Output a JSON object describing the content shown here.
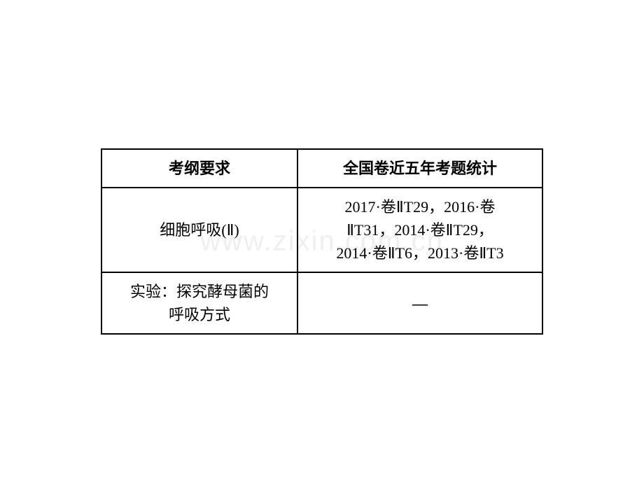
{
  "watermark": {
    "text": "www.zixin.com.cn",
    "color": "#e0e0e0"
  },
  "table": {
    "border_color": "#000000",
    "background_color": "#ffffff",
    "header": {
      "col1": "考纲要求",
      "col2": "全国卷近五年考题统计",
      "font_weight": "bold",
      "font_size": 22
    },
    "rows": [
      {
        "col1": "细胞呼吸(Ⅱ)",
        "col2_line1": "2017·卷ⅡT29，2016·卷",
        "col2_line2": "ⅡT31，2014·卷ⅡT29，",
        "col2_line3": "2014·卷ⅡT6，2013·卷ⅡT3"
      },
      {
        "col1_line1": "实验：探究酵母菌的",
        "col1_line2": "呼吸方式",
        "col2": "—"
      }
    ],
    "column_widths": {
      "col1": 280,
      "col2": 350
    },
    "font_size": 22,
    "text_color": "#000000"
  }
}
